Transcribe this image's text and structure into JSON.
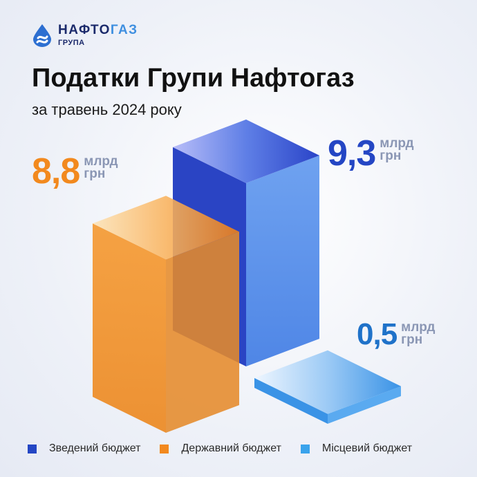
{
  "brand": {
    "name_main": "НАФТО",
    "name_accent": "ГАЗ",
    "sub": "ГРУПА"
  },
  "title": "Податки Групи Нафтогаз",
  "subtitle": "за травень 2024 року",
  "unit_line1": "млрд",
  "unit_line2": "грн",
  "chart_data": {
    "type": "bar",
    "title": "Податки Групи Нафтогаз",
    "subtitle": "за травень 2024 року",
    "unit": "млрд грн",
    "categories": [
      "Зведений бюджет",
      "Державний бюджет",
      "Місцевий бюджет"
    ],
    "values": [
      9.3,
      8.8,
      0.5
    ],
    "value_labels": [
      "9,3",
      "8,8",
      "0,5"
    ],
    "colors": [
      "#2446c4",
      "#f2891e",
      "#3aa3ec"
    ],
    "legend_position": "bottom",
    "grid": false
  }
}
